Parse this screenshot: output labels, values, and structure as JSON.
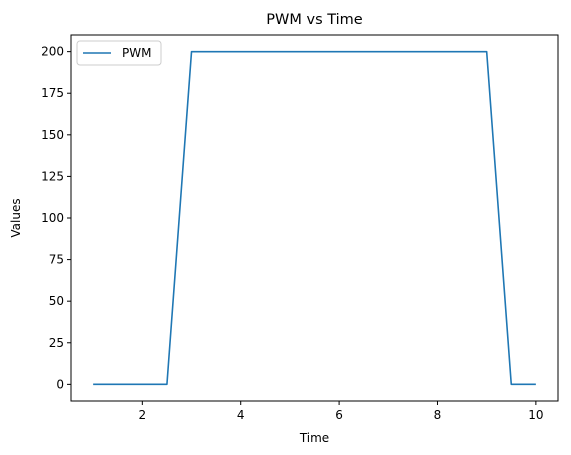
{
  "chart_data": {
    "type": "line",
    "title": "PWM vs Time",
    "xlabel": "Time",
    "ylabel": "Values",
    "xlim": [
      0.55,
      10.45
    ],
    "ylim": [
      -10,
      210
    ],
    "x_ticks": [
      2,
      4,
      6,
      8,
      10
    ],
    "y_ticks": [
      0,
      25,
      50,
      75,
      100,
      125,
      150,
      175,
      200
    ],
    "grid": false,
    "legend_position": "upper left",
    "series": [
      {
        "name": "PWM",
        "color": "#1f77b4",
        "x": [
          1,
          1.5,
          2,
          2.5,
          3,
          3.5,
          4,
          4.5,
          5,
          5.5,
          6,
          6.5,
          7,
          7.5,
          8,
          8.5,
          9,
          9.5,
          10
        ],
        "y": [
          0,
          0,
          0,
          0,
          200,
          200,
          200,
          200,
          200,
          200,
          200,
          200,
          200,
          200,
          200,
          200,
          200,
          0,
          0
        ]
      }
    ]
  }
}
